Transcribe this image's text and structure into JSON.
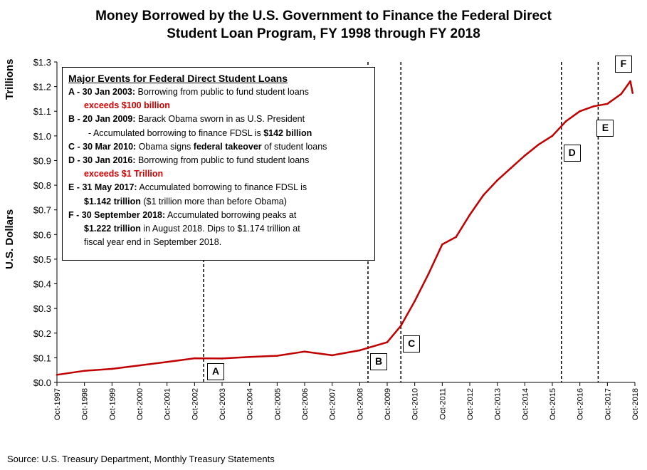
{
  "title": {
    "line1": "Money Borrowed by the U.S. Government to Finance the Federal Direct",
    "line2": "Student Loan Program, FY 1998 through FY 2018"
  },
  "source": "Source: U.S. Treasury Department, Monthly Treasury Statements",
  "events": {
    "header": "Major Events for Federal Direct Student Loans",
    "A_label": "A - 30 Jan 2003:",
    "A_text": " Borrowing from public to fund student loans",
    "A_red": "exceeds $100 billion",
    "B_label": "B - 20 Jan 2009:",
    "B_text": " Barack Obama sworn in as U.S. President",
    "B_text2": "- Accumulated borrowing  to finance FDSL is ",
    "B_bold": "$142 billion",
    "C_label": "C - 30 Mar 2010:",
    "C_text": " Obama signs ",
    "C_bold": "federal takeover",
    "C_text2": " of student loans",
    "D_label": "D - 30 Jan 2016:",
    "D_text": "  Borrowing from public to fund student loans",
    "D_red": "exceeds $1 Trillion",
    "E_label": "E - 31 May 2017:",
    "E_text": " Accumulated borrowing  to finance FDSL is",
    "E_bold": "$1.142 trillion",
    "E_text2": " ($1 trillion more than before Obama)",
    "F_label": "F - 30 September 2018:",
    "F_text": " Accumulated borrowing  peaks at",
    "F_bold": "$1.222 trillion",
    "F_text2": " in August 2018.  Dips to $1.174 trillion at",
    "F_text3": "fiscal year end in September  2018."
  },
  "chart_data": {
    "type": "line",
    "title": "Money Borrowed by the U.S. Government to Finance the Federal Direct Student Loan Program, FY 1998 through FY 2018",
    "ylabel_top": "Trillions",
    "ylabel": "U.S. Dollars",
    "xlabel": "",
    "ylim": [
      0,
      1.3
    ],
    "yticks": [
      "$0.0",
      "$0.1",
      "$0.2",
      "$0.3",
      "$0.4",
      "$0.5",
      "$0.6",
      "$0.7",
      "$0.8",
      "$0.9",
      "$1.0",
      "$1.1",
      "$1.2",
      "$1.3"
    ],
    "xticks": [
      "Oct-1997",
      "Oct-1998",
      "Oct-1999",
      "Oct-2000",
      "Oct-2001",
      "Oct-2002",
      "Oct-2003",
      "Oct-2004",
      "Oct-2005",
      "Oct-2006",
      "Oct-2007",
      "Oct-2008",
      "Oct-2009",
      "Oct-2010",
      "Oct-2011",
      "Oct-2012",
      "Oct-2013",
      "Oct-2014",
      "Oct-2015",
      "Oct-2016",
      "Oct-2017",
      "Oct-2018"
    ],
    "series_color": "#c00000",
    "series": [
      {
        "name": "",
        "x": [
          "Oct-1997",
          "Oct-1998",
          "Oct-1999",
          "Oct-2000",
          "Oct-2001",
          "Oct-2002",
          "Oct-2003",
          "Oct-2004",
          "Oct-2005",
          "Oct-2006",
          "Oct-2007",
          "Oct-2008",
          "Oct-2009",
          "Apr-2010",
          "Oct-2010",
          "Apr-2011",
          "Oct-2011",
          "Apr-2012",
          "Oct-2012",
          "Apr-2013",
          "Oct-2013",
          "Apr-2014",
          "Oct-2014",
          "Apr-2015",
          "Oct-2015",
          "Apr-2016",
          "Oct-2016",
          "Apr-2017",
          "Oct-2017",
          "Apr-2018",
          "Aug-2018",
          "Sep-2018"
        ],
        "values": [
          0.031,
          0.047,
          0.055,
          0.069,
          0.083,
          0.098,
          0.097,
          0.103,
          0.108,
          0.125,
          0.11,
          0.13,
          0.163,
          0.23,
          0.33,
          0.44,
          0.56,
          0.59,
          0.68,
          0.76,
          0.82,
          0.87,
          0.92,
          0.965,
          1.0,
          1.06,
          1.1,
          1.12,
          1.13,
          1.17,
          1.222,
          1.174
        ]
      }
    ],
    "events": [
      {
        "label": "A",
        "date": "30 Jan 2003"
      },
      {
        "label": "B",
        "date": "20 Jan 2009"
      },
      {
        "label": "C",
        "date": "30 Mar 2010"
      },
      {
        "label": "D",
        "date": "30 Jan 2016"
      },
      {
        "label": "E",
        "date": "31 May 2017"
      },
      {
        "label": "F",
        "date": "30 September 2018"
      }
    ],
    "grid": false,
    "legend": "none"
  }
}
